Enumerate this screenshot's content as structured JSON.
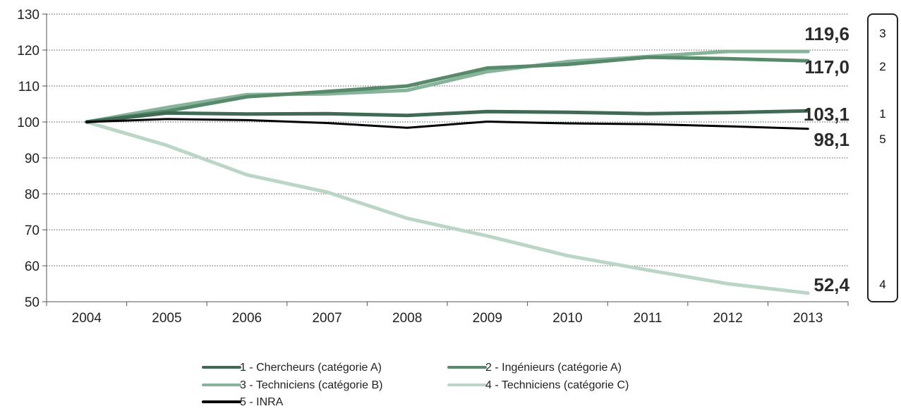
{
  "chart_data": {
    "type": "line",
    "x": [
      "2004",
      "2005",
      "2006",
      "2007",
      "2008",
      "2009",
      "2010",
      "2011",
      "2012",
      "2013"
    ],
    "ylim": [
      50,
      130
    ],
    "y_ticks": [
      50,
      60,
      70,
      80,
      90,
      100,
      110,
      120,
      130
    ],
    "grid": "horizontal-dotted",
    "legend_position": "bottom",
    "series": [
      {
        "name": "1 - Chercheurs (catégorie A)",
        "color": "#3f6a54",
        "values": [
          100,
          102.5,
          102.2,
          102.3,
          101.8,
          102.9,
          102.7,
          102.3,
          102.6,
          103.1
        ]
      },
      {
        "name": "2 - Ingénieurs (catégorie A)",
        "color": "#568a6a",
        "values": [
          100,
          103,
          107,
          108.5,
          110,
          115,
          116,
          118,
          117.6,
          117.0
        ]
      },
      {
        "name": "3 - Techniciens (catégorie B)",
        "color": "#86b39a",
        "values": [
          100,
          104,
          107.6,
          107.8,
          108.8,
          114,
          116.8,
          118.2,
          119.6,
          119.6
        ]
      },
      {
        "name": "4 - Techniciens (catégorie C)",
        "color": "#bcd6c5",
        "values": [
          100,
          93.5,
          85.3,
          80.5,
          73.2,
          68.3,
          62.8,
          58.8,
          55.0,
          52.4
        ]
      },
      {
        "name": "5 - INRA",
        "color": "#000000",
        "values": [
          100,
          100.8,
          100.5,
          99.7,
          98.4,
          100.1,
          99.6,
          99.4,
          98.8,
          98.1
        ]
      }
    ],
    "end_labels": [
      {
        "text": "119,6",
        "value": 119.6,
        "rank": "3"
      },
      {
        "text": "117,0",
        "value": 117.0,
        "rank": "2"
      },
      {
        "text": "103,1",
        "value": 103.1,
        "rank": "1"
      },
      {
        "text": "98,1",
        "value": 98.1,
        "rank": "5"
      },
      {
        "text": "52,4",
        "value": 52.4,
        "rank": "4"
      }
    ]
  }
}
